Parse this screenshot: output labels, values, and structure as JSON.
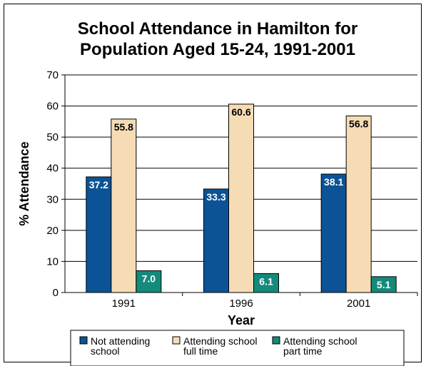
{
  "chart_data": {
    "type": "bar",
    "title": [
      "School Attendance in Hamilton for",
      "Population Aged 15-24, 1991-2001"
    ],
    "xlabel": "Year",
    "ylabel": "% Attendance",
    "categories": [
      "1991",
      "1996",
      "2001"
    ],
    "ylim": [
      0,
      70
    ],
    "yticks": [
      0,
      10,
      20,
      30,
      40,
      50,
      60,
      70
    ],
    "grid": true,
    "legend_position": "bottom",
    "series": [
      {
        "name": [
          "Not attending",
          "school"
        ],
        "values": [
          37.2,
          33.3,
          38.1
        ],
        "color": "#0b5396",
        "label_color": "#ffffff"
      },
      {
        "name": [
          "Attending school",
          "full time"
        ],
        "values": [
          55.8,
          60.6,
          56.8
        ],
        "color": "#f5dcb5",
        "label_color": "#000000"
      },
      {
        "name": [
          "Attending school",
          "part time"
        ],
        "values": [
          7.0,
          6.1,
          5.1
        ],
        "color": "#138a7c",
        "label_color": "#ffffff"
      }
    ]
  }
}
